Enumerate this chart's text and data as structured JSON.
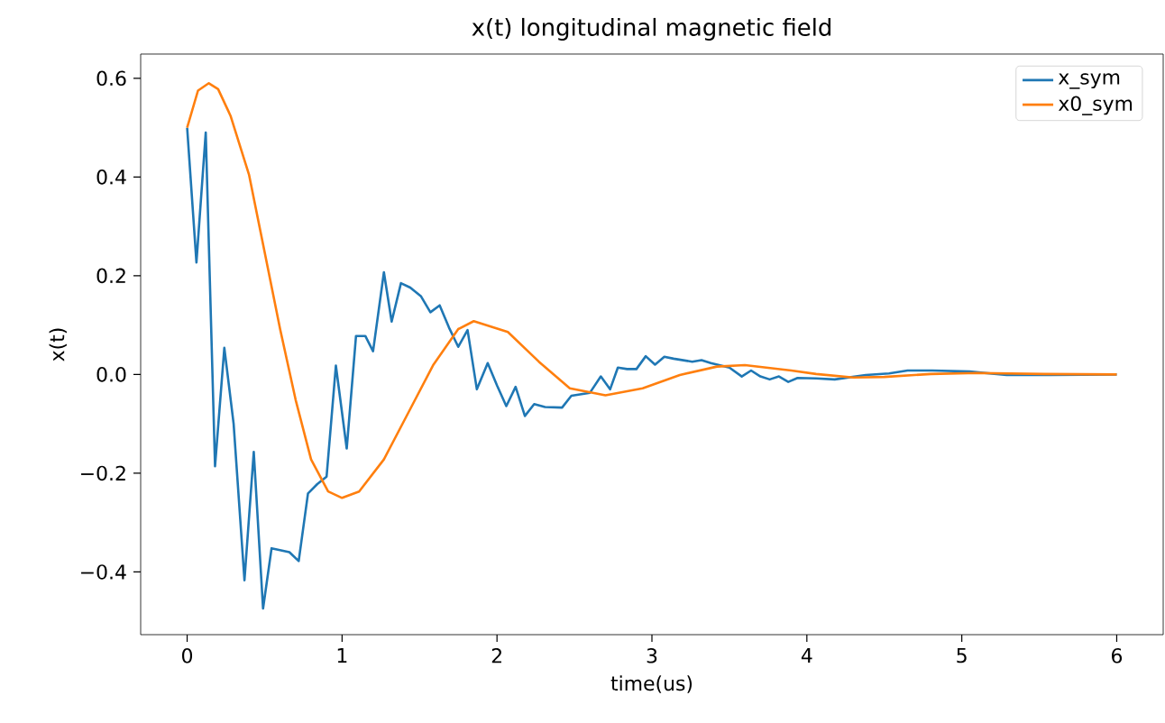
{
  "chart_data": {
    "type": "line",
    "title": "x(t) longitudinal magnetic field",
    "xlabel": "time(us)",
    "ylabel": "x(t)",
    "xlim": [
      -0.3,
      6.3
    ],
    "xticks": [
      0,
      1,
      2,
      3,
      4,
      5,
      6
    ],
    "ylim": [
      -0.527,
      0.649
    ],
    "yticks": [
      {
        "value": -0.4,
        "label": "−0.4"
      },
      {
        "value": -0.2,
        "label": "−0.2"
      },
      {
        "value": 0.0,
        "label": "0.0"
      },
      {
        "value": 0.2,
        "label": "0.2"
      },
      {
        "value": 0.4,
        "label": "0.4"
      },
      {
        "value": 0.6,
        "label": "0.6"
      }
    ],
    "grid": false,
    "legend": "top right",
    "marker": "none",
    "line_style": "solid",
    "series": [
      {
        "name": "x_sym",
        "color": "#1f77b4",
        "x": [
          0,
          0.06,
          0.12,
          0.18,
          0.24,
          0.3,
          0.37,
          0.43,
          0.49,
          0.545,
          0.66,
          0.72,
          0.78,
          0.84,
          0.9,
          0.96,
          1.03,
          1.09,
          1.15,
          1.2,
          1.27,
          1.32,
          1.38,
          1.44,
          1.51,
          1.57,
          1.63,
          1.69,
          1.75,
          1.81,
          1.87,
          1.94,
          2.0,
          2.06,
          2.12,
          2.18,
          2.24,
          2.31,
          2.42,
          2.48,
          2.6,
          2.67,
          2.73,
          2.78,
          2.84,
          2.9,
          2.96,
          3.02,
          3.08,
          3.14,
          3.26,
          3.32,
          3.38,
          3.5,
          3.58,
          3.64,
          3.7,
          3.76,
          3.82,
          3.88,
          3.94,
          4.06,
          4.18,
          4.38,
          4.53,
          4.65,
          4.81,
          5.05,
          5.29,
          5.57,
          6.0
        ],
        "values": [
          0.5,
          0.227,
          0.49,
          -0.186,
          0.054,
          -0.1,
          -0.417,
          -0.157,
          -0.474,
          -0.352,
          -0.36,
          -0.378,
          -0.241,
          -0.222,
          -0.207,
          0.018,
          -0.15,
          0.078,
          0.078,
          0.047,
          0.207,
          0.107,
          0.185,
          0.176,
          0.158,
          0.126,
          0.14,
          0.095,
          0.056,
          0.09,
          -0.03,
          0.023,
          -0.022,
          -0.064,
          -0.025,
          -0.084,
          -0.06,
          -0.066,
          -0.067,
          -0.043,
          -0.037,
          -0.004,
          -0.03,
          0.014,
          0.011,
          0.011,
          0.037,
          0.02,
          0.036,
          0.032,
          0.026,
          0.029,
          0.023,
          0.014,
          -0.004,
          0.008,
          -0.004,
          -0.01,
          -0.004,
          -0.015,
          -0.007,
          -0.008,
          -0.01,
          -0.001,
          0.002,
          0.008,
          0.008,
          0.006,
          -0.001,
          -0.001,
          0.0
        ]
      },
      {
        "name": "x0_sym",
        "color": "#ff7f0e",
        "x": [
          0,
          0.07,
          0.14,
          0.2,
          0.28,
          0.4,
          0.5,
          0.6,
          0.7,
          0.8,
          0.91,
          1.0,
          1.11,
          1.27,
          1.43,
          1.59,
          1.75,
          1.85,
          2.07,
          2.27,
          2.47,
          2.7,
          2.94,
          3.18,
          3.42,
          3.6,
          3.9,
          4.06,
          4.3,
          4.5,
          4.8,
          5.1,
          5.53,
          6.0
        ],
        "values": [
          0.5,
          0.575,
          0.59,
          0.578,
          0.524,
          0.404,
          0.248,
          0.092,
          -0.051,
          -0.172,
          -0.237,
          -0.25,
          -0.237,
          -0.172,
          -0.076,
          0.02,
          0.092,
          0.108,
          0.086,
          0.026,
          -0.028,
          -0.042,
          -0.028,
          -0.001,
          0.016,
          0.019,
          0.008,
          0.001,
          -0.006,
          -0.005,
          0.001,
          0.003,
          0.001,
          0.0
        ]
      }
    ]
  }
}
